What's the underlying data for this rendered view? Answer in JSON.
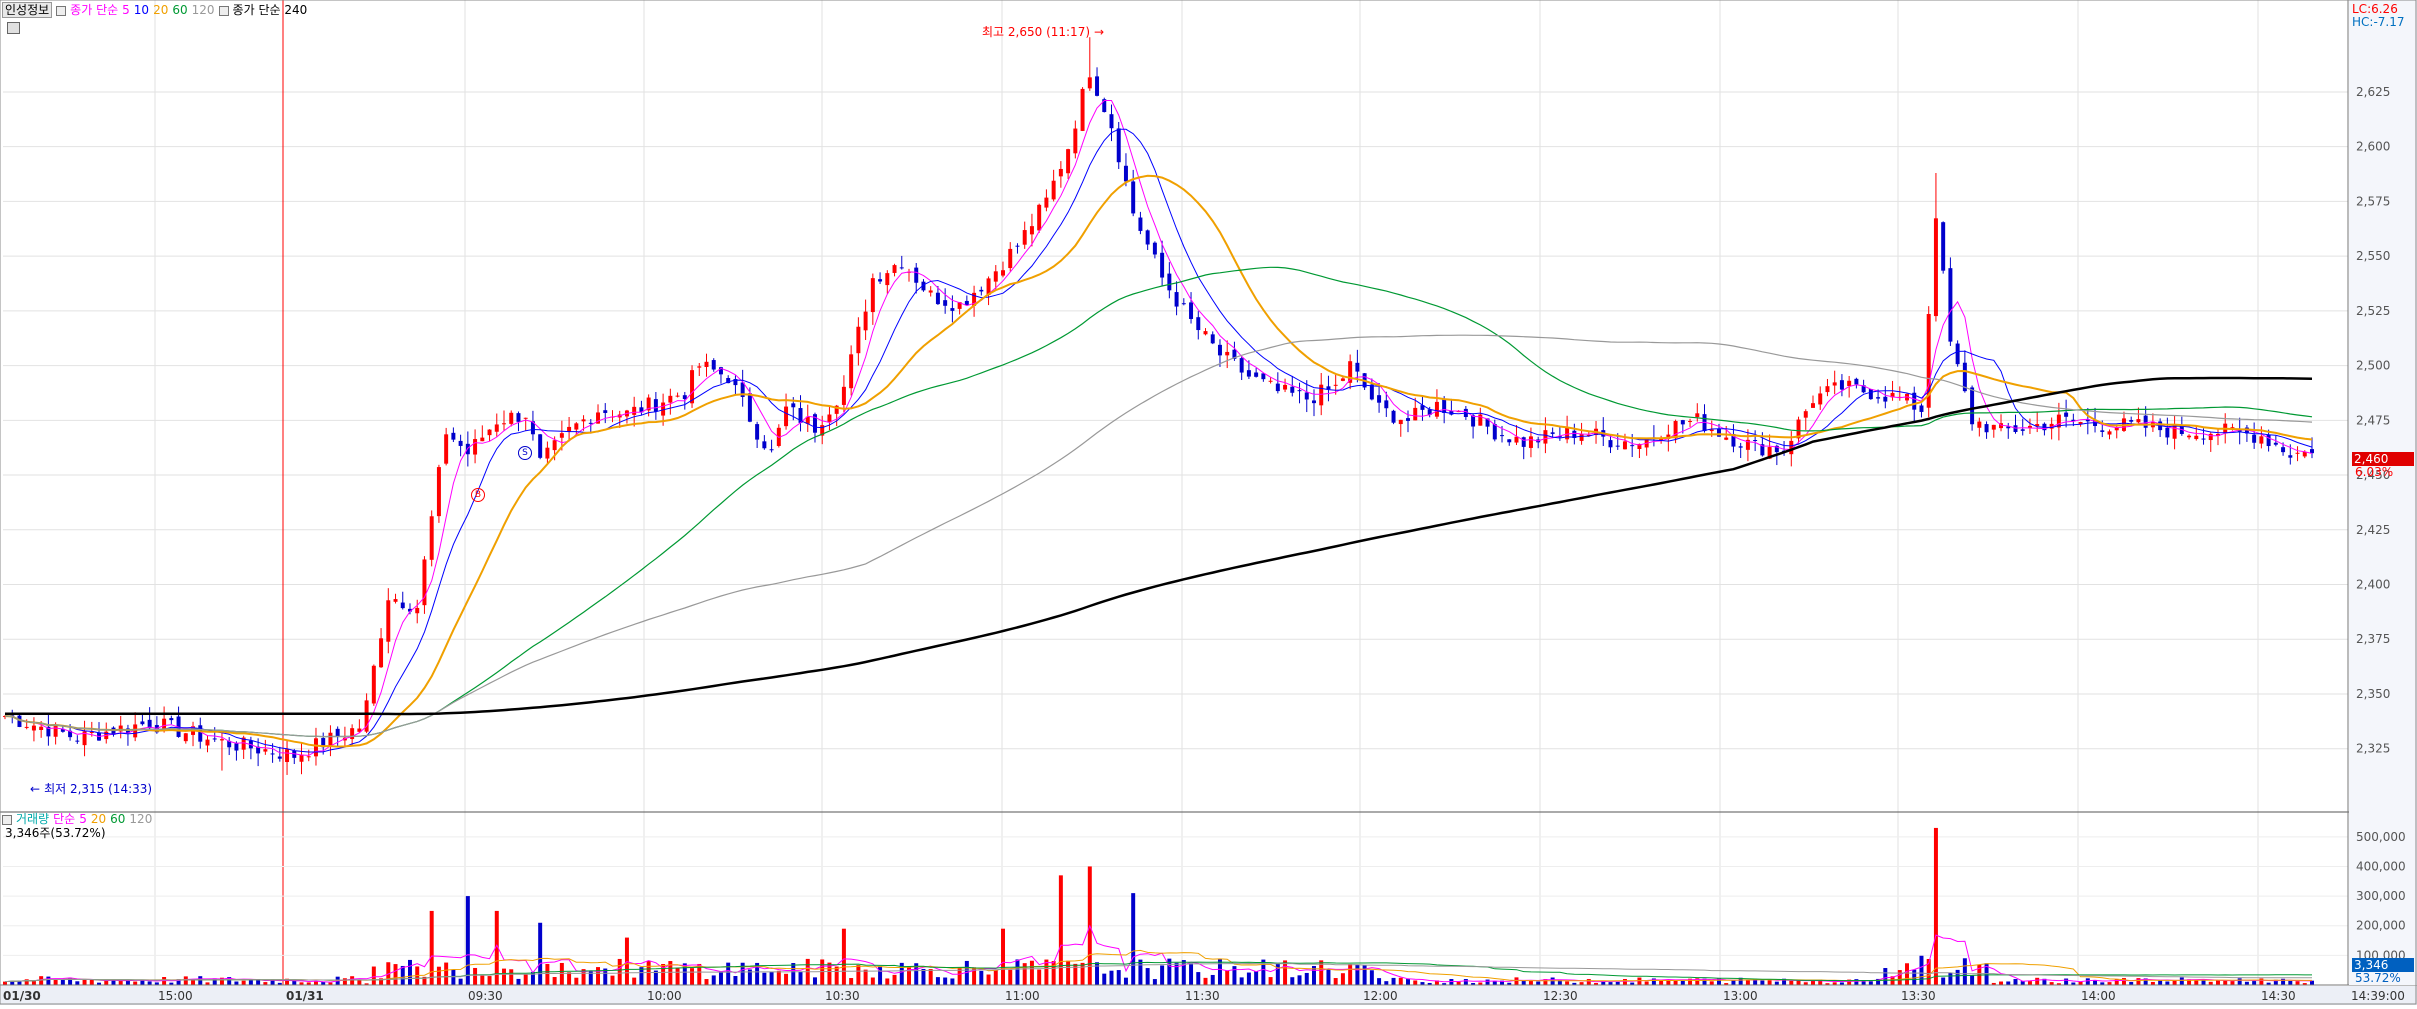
{
  "price_legend": {
    "tag": "인성정보",
    "ma_title": "종가 단순",
    "ma_periods": [
      "5",
      "10",
      "20",
      "60",
      "120"
    ],
    "long_ma": "종가 단순 240"
  },
  "volume_legend": {
    "title": "거래량",
    "ma_title": "단순",
    "ma_periods": [
      "5",
      "20",
      "60",
      "120"
    ],
    "current": "3,346주(53.72%)"
  },
  "right_panel": {
    "lc": "LC:6.26",
    "hc": "HC:-7.17",
    "price_box": "2,460",
    "pct_text": "6.03%",
    "vol_box": "3,346",
    "vol_pct": "53.72%"
  },
  "annotations": {
    "high_label": "최고 2,650 (11:17)",
    "low_label": "최저 2,315 (14:33)",
    "marker_b": "B",
    "marker_s": "S"
  },
  "colors": {
    "up": "#ff0000",
    "down": "#0000cc",
    "ma5": "#ff00ff",
    "ma10": "#0000ff",
    "ma20": "#f0a000",
    "ma60": "#009933",
    "ma120": "#999999",
    "ma240": "#000000"
  },
  "chart_data": [
    {
      "type": "candlestick",
      "title": "인성정보",
      "x_labels": [
        "01/30",
        "15:00",
        "01/31",
        "09:30",
        "10:00",
        "10:30",
        "11:00",
        "11:30",
        "12:00",
        "12:30",
        "13:00",
        "13:30",
        "14:00",
        "14:30",
        "14:39:00"
      ],
      "y_ticks": [
        2325,
        2350,
        2375,
        2400,
        2425,
        2450,
        2475,
        2500,
        2525,
        2550,
        2575,
        2600,
        2625
      ],
      "ylim": [
        2297,
        2667
      ],
      "high": {
        "value": 2650,
        "time": "11:17"
      },
      "low": {
        "value": 2315,
        "time": "14:33"
      },
      "last": 2460,
      "close_path": [
        [
          0,
          2340
        ],
        [
          10,
          2330
        ],
        [
          20,
          2337
        ],
        [
          30,
          2328
        ],
        [
          40,
          2322
        ],
        [
          49,
          2335
        ],
        [
          50,
          2345
        ],
        [
          53,
          2395
        ],
        [
          57,
          2390
        ],
        [
          61,
          2470
        ],
        [
          64,
          2460
        ],
        [
          68,
          2475
        ],
        [
          72,
          2478
        ],
        [
          74,
          2455
        ],
        [
          78,
          2470
        ],
        [
          82,
          2480
        ],
        [
          86,
          2478
        ],
        [
          90,
          2483
        ],
        [
          94,
          2488
        ],
        [
          96,
          2500
        ],
        [
          100,
          2495
        ],
        [
          104,
          2470
        ],
        [
          106,
          2460
        ],
        [
          108,
          2480
        ],
        [
          112,
          2472
        ],
        [
          116,
          2490
        ],
        [
          120,
          2540
        ],
        [
          124,
          2548
        ],
        [
          128,
          2532
        ],
        [
          132,
          2528
        ],
        [
          136,
          2540
        ],
        [
          140,
          2555
        ],
        [
          144,
          2575
        ],
        [
          147,
          2600
        ],
        [
          150,
          2635
        ],
        [
          153,
          2610
        ],
        [
          156,
          2570
        ],
        [
          160,
          2540
        ],
        [
          164,
          2520
        ],
        [
          168,
          2505
        ],
        [
          172,
          2495
        ],
        [
          176,
          2488
        ],
        [
          180,
          2485
        ],
        [
          184,
          2490
        ],
        [
          186,
          2500
        ],
        [
          190,
          2480
        ],
        [
          194,
          2475
        ],
        [
          198,
          2482
        ],
        [
          202,
          2478
        ],
        [
          206,
          2470
        ],
        [
          210,
          2465
        ],
        [
          214,
          2468
        ],
        [
          218,
          2470
        ],
        [
          222,
          2466
        ],
        [
          226,
          2465
        ],
        [
          230,
          2472
        ],
        [
          234,
          2475
        ],
        [
          238,
          2468
        ],
        [
          242,
          2463
        ],
        [
          246,
          2462
        ],
        [
          250,
          2485
        ],
        [
          254,
          2490
        ],
        [
          258,
          2488
        ],
        [
          262,
          2485
        ],
        [
          265,
          2480
        ],
        [
          267,
          2570
        ],
        [
          269,
          2510
        ],
        [
          272,
          2475
        ],
        [
          276,
          2470
        ],
        [
          280,
          2472
        ],
        [
          284,
          2475
        ],
        [
          290,
          2473
        ],
        [
          296,
          2472
        ],
        [
          300,
          2470
        ],
        [
          306,
          2470
        ],
        [
          312,
          2468
        ],
        [
          316,
          2460
        ]
      ]
    },
    {
      "type": "bar",
      "title": "거래량",
      "y_ticks": [
        100000,
        200000,
        300000,
        400000,
        500000
      ],
      "ylim": [
        0,
        550000
      ],
      "peaks": [
        [
          59,
          250000
        ],
        [
          64,
          300000
        ],
        [
          68,
          250000
        ],
        [
          74,
          210000
        ],
        [
          86,
          160000
        ],
        [
          116,
          190000
        ],
        [
          138,
          190000
        ],
        [
          146,
          370000
        ],
        [
          150,
          400000
        ],
        [
          156,
          310000
        ],
        [
          267,
          530000
        ]
      ]
    }
  ]
}
